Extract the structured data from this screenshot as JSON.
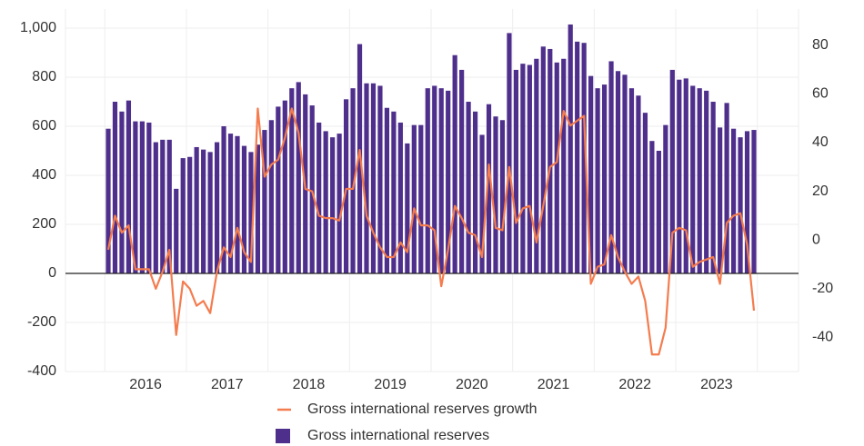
{
  "chart_data": {
    "type": "bar-line",
    "categories": [
      null,
      null,
      null,
      null,
      null,
      "2016",
      null,
      null,
      null,
      null,
      null,
      null,
      null,
      null,
      null,
      null,
      null,
      "2017",
      null,
      null,
      null,
      null,
      null,
      null,
      null,
      null,
      null,
      null,
      null,
      "2018",
      null,
      null,
      null,
      null,
      null,
      null,
      null,
      null,
      null,
      null,
      null,
      "2019",
      null,
      null,
      null,
      null,
      null,
      null,
      null,
      null,
      null,
      null,
      null,
      "2020",
      null,
      null,
      null,
      null,
      null,
      null,
      null,
      null,
      null,
      null,
      null,
      "2021",
      null,
      null,
      null,
      null,
      null,
      null,
      null,
      null,
      null,
      null,
      null,
      "2022",
      null,
      null,
      null,
      null,
      null,
      null,
      null,
      null,
      null,
      null,
      null,
      "2023",
      null,
      null,
      null,
      null,
      null,
      null
    ],
    "series": [
      {
        "name": "Gross international reserves growth",
        "type": "line",
        "axis": "y2",
        "color": "#f47c4e",
        "values": [
          -4,
          10,
          3,
          6,
          -12,
          -12,
          -12,
          -20,
          -13,
          -4,
          -39,
          -17,
          -20,
          -27,
          -25,
          -30,
          -13,
          -3,
          -7,
          5,
          -5,
          -9,
          54,
          26,
          31,
          33,
          42,
          54,
          44,
          21,
          20,
          10,
          9,
          9,
          8,
          21,
          21,
          37,
          10,
          3,
          -3,
          -7,
          -7,
          -1,
          -5,
          13,
          6,
          6,
          4,
          -19,
          -4,
          14,
          9,
          3,
          2,
          -7,
          31,
          5,
          4,
          30,
          7,
          13,
          14,
          -1,
          14,
          30,
          32,
          53,
          47,
          49,
          51,
          -18,
          -11,
          -10,
          2,
          -7,
          -13,
          -18,
          -15,
          -25,
          -47,
          -47,
          -36,
          3,
          5,
          4,
          -11,
          -9,
          -8,
          -7,
          -18,
          7,
          10,
          11,
          -2,
          -29
        ]
      },
      {
        "name": "Gross international reserves",
        "type": "bar",
        "color": "#4f2f8c",
        "values": [
          590,
          700,
          660,
          705,
          620,
          620,
          615,
          535,
          545,
          545,
          345,
          470,
          475,
          515,
          505,
          495,
          535,
          600,
          570,
          560,
          520,
          495,
          525,
          585,
          625,
          680,
          705,
          755,
          780,
          730,
          685,
          615,
          580,
          555,
          570,
          710,
          755,
          935,
          775,
          775,
          765,
          675,
          660,
          615,
          530,
          605,
          605,
          755,
          765,
          755,
          745,
          890,
          830,
          700,
          660,
          565,
          690,
          640,
          625,
          980,
          830,
          855,
          850,
          875,
          925,
          915,
          860,
          875,
          1015,
          945,
          940,
          805,
          755,
          770,
          865,
          825,
          810,
          755,
          725,
          655,
          540,
          500,
          605,
          830,
          790,
          795,
          765,
          755,
          745,
          700,
          595,
          695,
          590,
          555,
          580,
          585
        ]
      }
    ],
    "ylim": [
      -400,
      1000
    ],
    "yticks": [
      -400,
      -200,
      0,
      200,
      400,
      600,
      800,
      {
        "value": 1000,
        "label": "1,000"
      }
    ],
    "y2lim": [
      -54,
      87
    ],
    "y2ticks": [
      -40,
      -20,
      0,
      20,
      40,
      60,
      80
    ],
    "grid": true,
    "legend": "bottom"
  }
}
